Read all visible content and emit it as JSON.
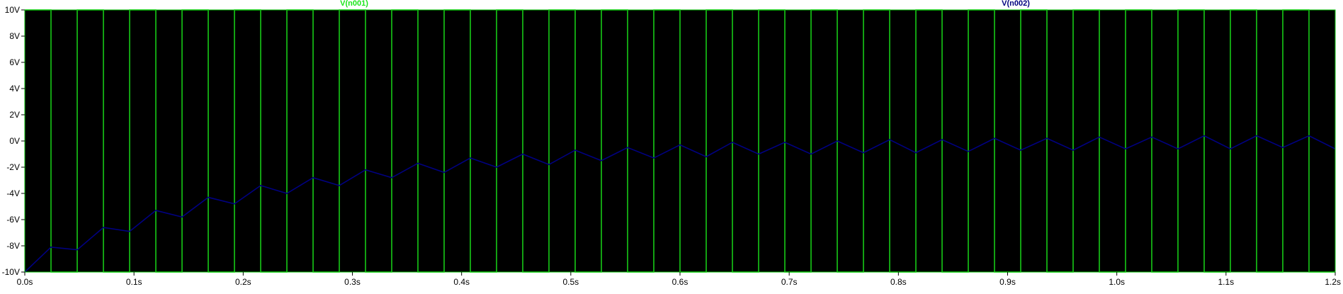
{
  "chart_data": {
    "type": "line",
    "xlim": [
      0,
      1.2
    ],
    "ylim": [
      -10,
      10
    ],
    "x_ticks": [
      0.0,
      0.1,
      0.2,
      0.3,
      0.4,
      0.5,
      0.6,
      0.7,
      0.8,
      0.9,
      1.0,
      1.1,
      1.2
    ],
    "x_tick_labels": [
      "0.0s",
      "0.1s",
      "0.2s",
      "0.3s",
      "0.4s",
      "0.5s",
      "0.6s",
      "0.7s",
      "0.8s",
      "0.9s",
      "1.0s",
      "1.1s",
      "1.2s"
    ],
    "y_ticks": [
      -10,
      -8,
      -6,
      -4,
      -2,
      0,
      2,
      4,
      6,
      8,
      10
    ],
    "y_tick_labels": [
      "-10V",
      "-8V",
      "-6V",
      "-4V",
      "-2V",
      "0V",
      "2V",
      "4V",
      "6V",
      "8V",
      "10V"
    ],
    "background": "#000000",
    "axis_color": "#00c000",
    "series": [
      {
        "name": "V(n001)",
        "color": "#19e619",
        "kind": "square-wave",
        "high": 10,
        "low": -10,
        "period": 0.048,
        "start": 0.024
      },
      {
        "name": "V(n002)",
        "color": "#000080",
        "x": [
          0.0,
          0.024,
          0.048,
          0.072,
          0.096,
          0.12,
          0.144,
          0.168,
          0.192,
          0.216,
          0.24,
          0.264,
          0.288,
          0.312,
          0.336,
          0.36,
          0.384,
          0.408,
          0.432,
          0.456,
          0.48,
          0.504,
          0.528,
          0.552,
          0.576,
          0.6,
          0.624,
          0.648,
          0.672,
          0.696,
          0.72,
          0.744,
          0.768,
          0.792,
          0.816,
          0.84,
          0.864,
          0.888,
          0.912,
          0.936,
          0.96,
          0.984,
          1.008,
          1.032,
          1.056,
          1.08,
          1.104,
          1.128,
          1.152,
          1.176,
          1.2
        ],
        "y": [
          -10.0,
          -8.1,
          -8.3,
          -6.6,
          -6.9,
          -5.3,
          -5.8,
          -4.3,
          -4.8,
          -3.4,
          -4.0,
          -2.8,
          -3.4,
          -2.2,
          -2.8,
          -1.7,
          -2.4,
          -1.3,
          -2.0,
          -1.0,
          -1.8,
          -0.7,
          -1.5,
          -0.5,
          -1.3,
          -0.3,
          -1.2,
          -0.1,
          -1.0,
          -0.1,
          -1.0,
          0.0,
          -0.9,
          0.1,
          -0.9,
          0.1,
          -0.8,
          0.2,
          -0.7,
          0.2,
          -0.7,
          0.3,
          -0.6,
          0.3,
          -0.6,
          0.4,
          -0.6,
          0.4,
          -0.5,
          0.4,
          -0.6
        ]
      }
    ]
  }
}
